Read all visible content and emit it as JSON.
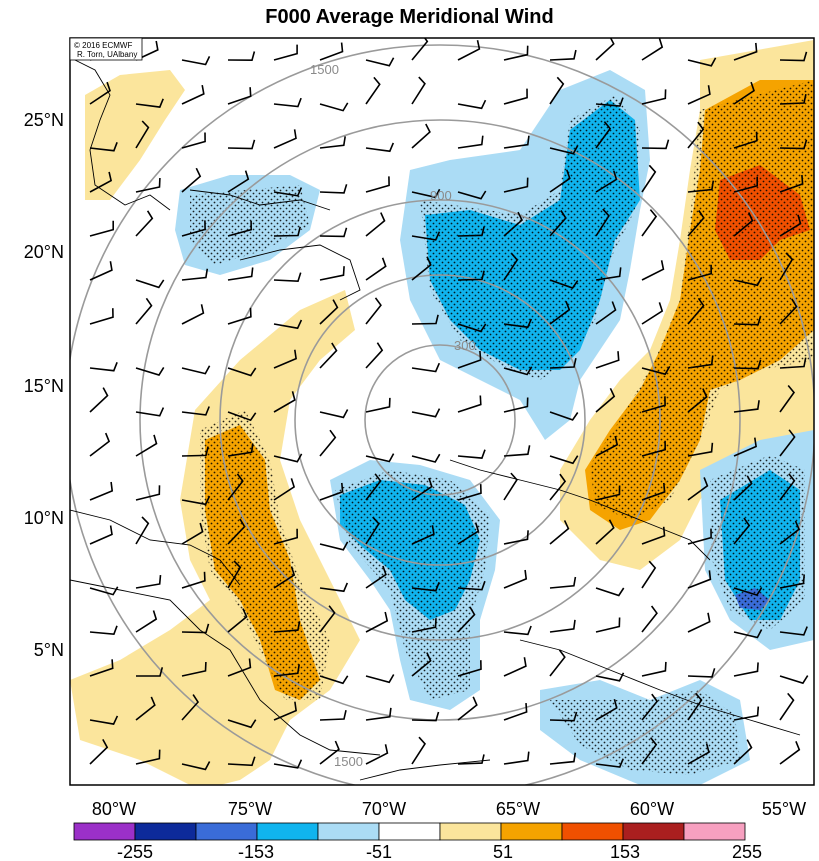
{
  "title": "F000 Average Meridional Wind",
  "credit": {
    "line1": "© 2016 ECMWF",
    "line2": "R. Torn, UAlbany"
  },
  "latitude_labels": [
    "25°N",
    "20°N",
    "15°N",
    "10°N",
    "5°N"
  ],
  "longitude_labels": [
    "80°W",
    "75°W",
    "70°W",
    "65°W",
    "60°W",
    "55°W"
  ],
  "range_ring_labels": [
    "1500",
    "900",
    "300"
  ],
  "colorbar": {
    "labels": [
      "-255",
      "-153",
      "-51",
      "51",
      "153",
      "255"
    ],
    "colors": [
      "#9b30c8",
      "#0d2a9a",
      "#3a6cd8",
      "#10b4ee",
      "#abdcf5",
      "#ffffff",
      "#fbe59c",
      "#f5a300",
      "#f05000",
      "#aa1f1f",
      "#f7a0c0"
    ]
  },
  "colors": {
    "positive_light": "#fbe59c",
    "positive_mid": "#f5a300",
    "positive_high": "#f05000",
    "negative_light": "#abdcf5",
    "negative_mid": "#10b4ee",
    "negative_high": "#3a6cd8",
    "ring": "#9a9a9a"
  }
}
